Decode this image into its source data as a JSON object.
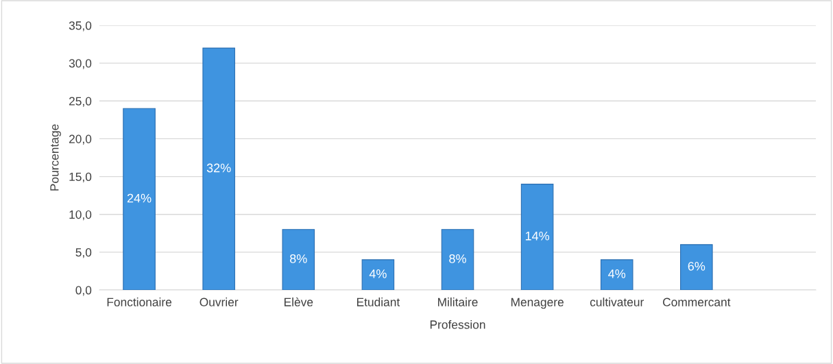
{
  "chart_data": {
    "type": "bar",
    "xlabel": "Profession",
    "ylabel": "Pourcentage",
    "categories": [
      "Fonctionaire",
      "Ouvrier",
      "Elève",
      "Etudiant",
      "Militaire",
      "Menagere",
      "cultivateur",
      "Commercant",
      null
    ],
    "values": [
      24,
      32,
      8,
      4,
      8,
      14,
      4,
      6,
      null
    ],
    "value_labels": [
      "24%",
      "32%",
      "8%",
      "4%",
      "8%",
      "14%",
      "4%",
      "6%",
      null
    ],
    "color": "#3f94e0",
    "ylim": [
      0,
      35
    ],
    "yticks": [
      {
        "value": 0,
        "label": "0,0"
      },
      {
        "value": 5,
        "label": "5,0"
      },
      {
        "value": 10,
        "label": "10,0"
      },
      {
        "value": 15,
        "label": "15,0"
      },
      {
        "value": 20,
        "label": "20,0"
      },
      {
        "value": 25,
        "label": "25,0"
      },
      {
        "value": 30,
        "label": "30,0"
      },
      {
        "value": 35,
        "label": "35,0"
      }
    ],
    "grid": "y",
    "legend": false
  }
}
